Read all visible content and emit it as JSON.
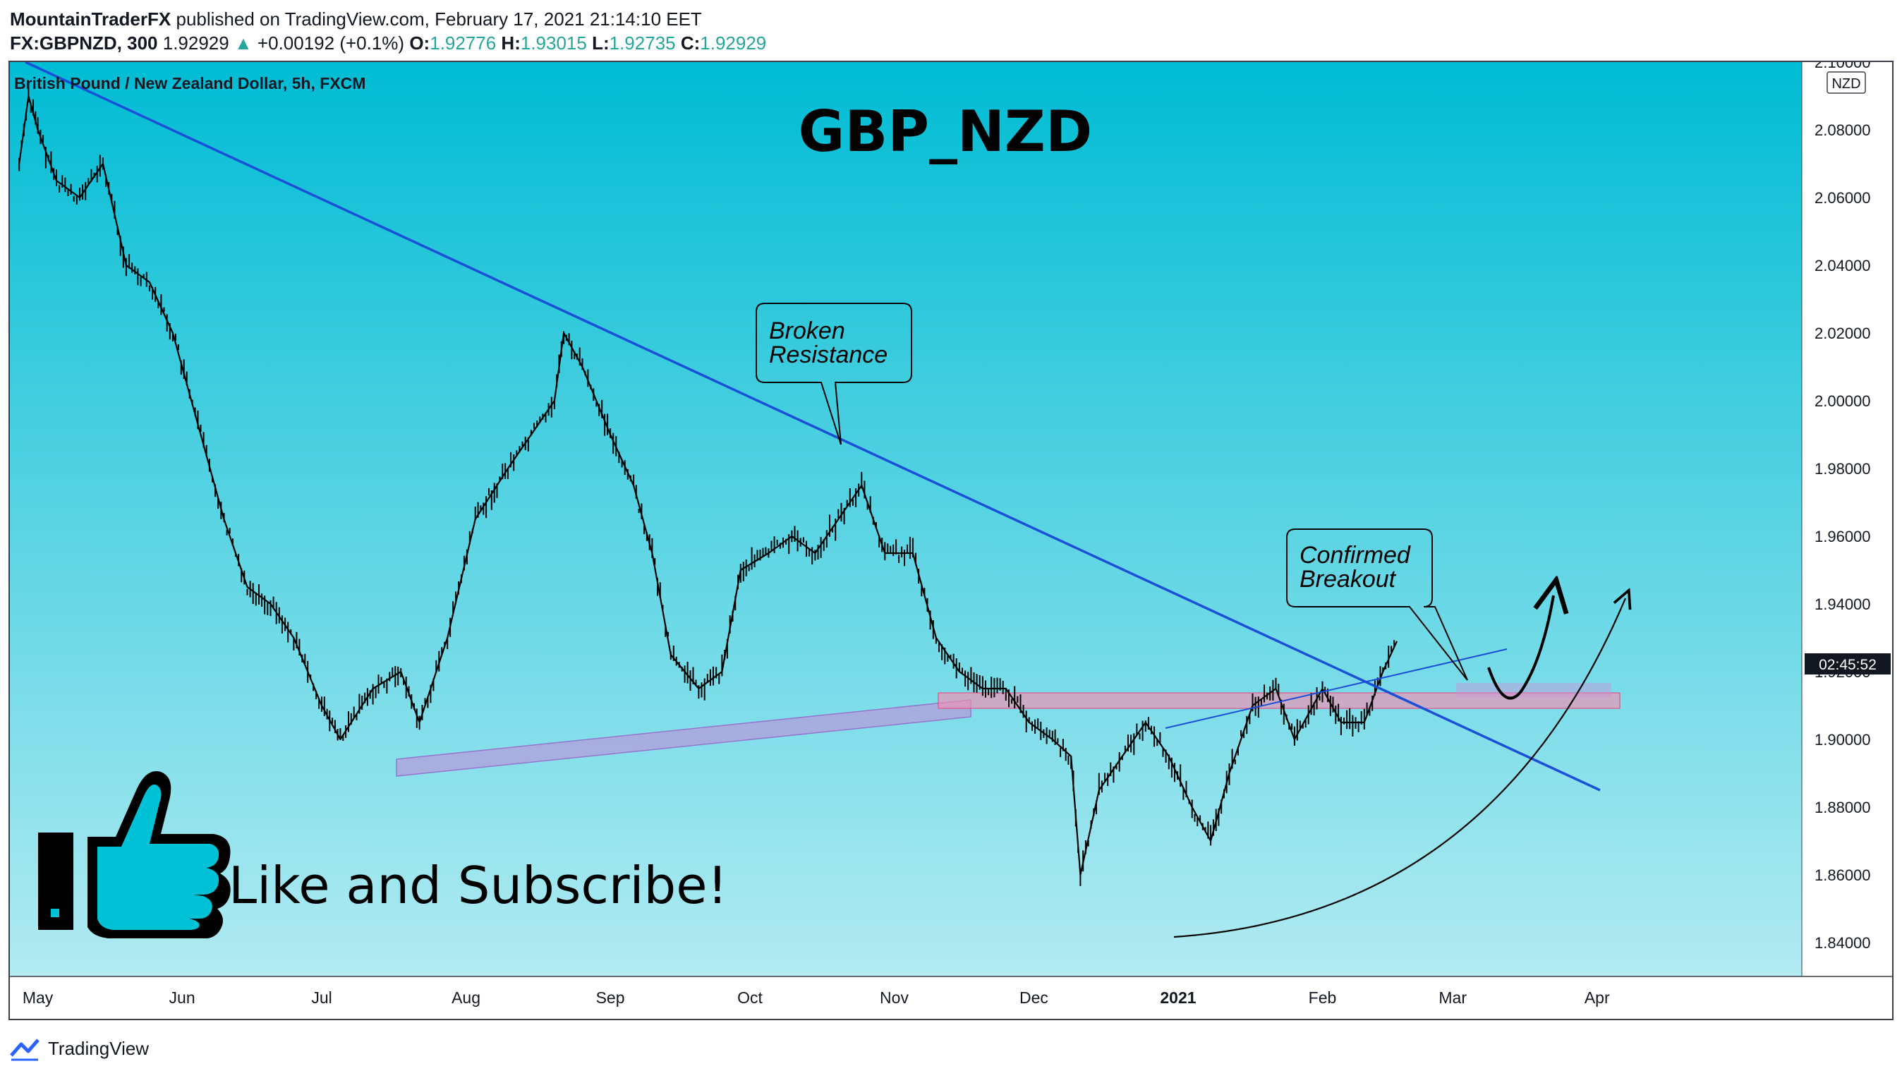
{
  "header": {
    "author": "MountainTraderFX",
    "published_text": "published on TradingView.com, February 17, 2021 21:14:10 EET",
    "symbol": "FX:GBPNZD, 300",
    "last_price": "1.92929",
    "change": "+0.00192 (+0.1%)",
    "open_label": "O:",
    "open": "1.92776",
    "high_label": "H:",
    "high": "1.93015",
    "low_label": "L:",
    "low": "1.92735",
    "close_label": "C:",
    "close": "1.92929"
  },
  "chart": {
    "legend": "British Pound / New Zealand Dollar, 5h, FXCM",
    "heading": "GBP_NZD",
    "currency_badge": "NZD",
    "countdown": "02:45:52",
    "callout_broken": [
      "Broken",
      "Resistance"
    ],
    "callout_breakout": [
      "Confirmed",
      "Breakout"
    ],
    "cta_text": "Like and Subscribe!",
    "colors": {
      "bg_top": "#00bcd4",
      "bg_bottom": "#b2ebf2",
      "trendline": "#1a4fd8",
      "support_zone": "#b39ddb",
      "resistance_zone": "#f48fb1",
      "candles": "#000000"
    }
  },
  "chart_data": {
    "type": "line",
    "title": "British Pound / New Zealand Dollar, 5h, FXCM",
    "ylim": [
      1.83,
      2.1
    ],
    "y_ticks": [
      "2.10000",
      "2.08000",
      "2.06000",
      "2.04000",
      "2.02000",
      "2.00000",
      "1.98000",
      "1.96000",
      "1.94000",
      "1.92000",
      "1.90000",
      "1.88000",
      "1.86000",
      "1.84000"
    ],
    "x_ticks": [
      "May",
      "Jun",
      "Jul",
      "Aug",
      "Sep",
      "Oct",
      "Nov",
      "Dec",
      "2021",
      "Feb",
      "Mar",
      "Apr"
    ],
    "series": [
      {
        "x": [
          "2020-04-27",
          "2020-04-29",
          "2020-05-01",
          "2020-05-05",
          "2020-05-10",
          "2020-05-15",
          "2020-05-20",
          "2020-05-25",
          "2020-05-30",
          "2020-06-05",
          "2020-06-10",
          "2020-06-15",
          "2020-06-20",
          "2020-06-25",
          "2020-07-01",
          "2020-07-05",
          "2020-07-12",
          "2020-07-18",
          "2020-07-22",
          "2020-07-28",
          "2020-08-03",
          "2020-08-10",
          "2020-08-15",
          "2020-08-20",
          "2020-08-22",
          "2020-08-26",
          "2020-09-01",
          "2020-09-06",
          "2020-09-10",
          "2020-09-14",
          "2020-09-20",
          "2020-09-25",
          "2020-09-29",
          "2020-10-05",
          "2020-10-10",
          "2020-10-15",
          "2020-10-20",
          "2020-10-25",
          "2020-10-30",
          "2020-11-05",
          "2020-11-10",
          "2020-11-15",
          "2020-11-20",
          "2020-11-25",
          "2020-11-30",
          "2020-12-05",
          "2020-12-09",
          "2020-12-11",
          "2020-12-15",
          "2020-12-20",
          "2020-12-25",
          "2020-12-30",
          "2021-01-04",
          "2021-01-08",
          "2021-01-12",
          "2021-01-17",
          "2021-01-22",
          "2021-01-26",
          "2021-02-01",
          "2021-02-05",
          "2021-02-10",
          "2021-02-14",
          "2021-02-17"
        ],
        "values": [
          2.07,
          2.09,
          2.08,
          2.065,
          2.06,
          2.07,
          2.04,
          2.035,
          2.02,
          1.99,
          1.965,
          1.945,
          1.94,
          1.93,
          1.91,
          1.9,
          1.915,
          1.92,
          1.905,
          1.93,
          1.965,
          1.98,
          1.99,
          2.0,
          2.02,
          2.01,
          1.99,
          1.975,
          1.955,
          1.925,
          1.915,
          1.92,
          1.95,
          1.955,
          1.96,
          1.955,
          1.965,
          1.975,
          1.955,
          1.955,
          1.93,
          1.92,
          1.915,
          1.915,
          1.905,
          1.9,
          1.895,
          1.86,
          1.885,
          1.895,
          1.905,
          1.895,
          1.88,
          1.87,
          1.89,
          1.91,
          1.915,
          1.9,
          1.915,
          1.905,
          1.905,
          1.92,
          1.929
        ]
      }
    ]
  }
}
